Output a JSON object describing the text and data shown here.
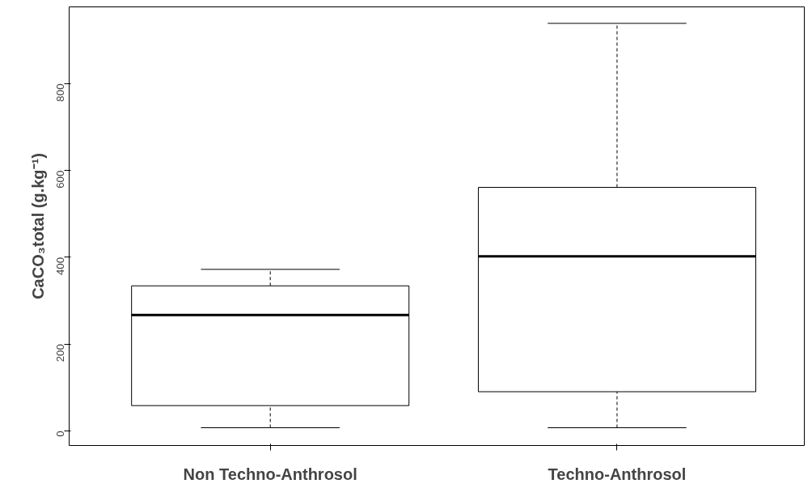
{
  "chart_data": {
    "type": "box",
    "ylabel": "CaCO₃total (g.kg⁻¹)",
    "categories": [
      "Non Techno-Anthrosol",
      "Techno-Anthrosol"
    ],
    "boxes": [
      {
        "low": 7,
        "q1": 58,
        "median": 267,
        "q3": 334,
        "high": 372
      },
      {
        "low": 7,
        "q1": 90,
        "median": 402,
        "q3": 561,
        "high": 939
      }
    ],
    "ylim": [
      -34,
      977
    ],
    "yticks": [
      0,
      200,
      400,
      600,
      800
    ],
    "grid": false
  }
}
